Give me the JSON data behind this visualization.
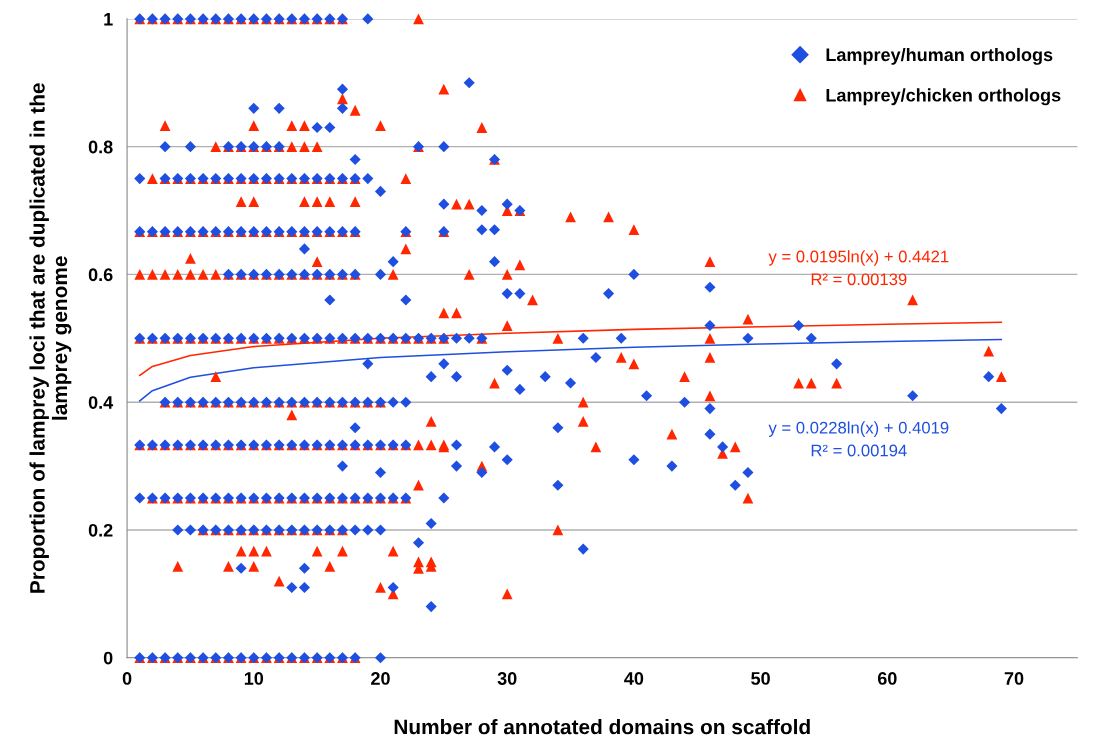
{
  "chart_data": {
    "type": "scatter",
    "xlabel": "Number of annotated domains on scaffold",
    "ylabel": "Proportion of lamprey loci that are duplicated in the\nlamprey genome",
    "xlim": [
      0,
      75
    ],
    "xticks": [
      0,
      10,
      20,
      30,
      40,
      50,
      60,
      70
    ],
    "ylim": [
      0,
      1
    ],
    "yticks": [
      0,
      0.2,
      0.4,
      0.6,
      0.8,
      1
    ],
    "grid": "y",
    "legend": "top right",
    "annotations": [
      "y = 0.0195ln(x) + 0.4421\nR² = 0.00139",
      "y = 0.0228ln(x) + 0.4019\nR² = 0.00194"
    ],
    "series": [
      {
        "name": "Lamprey/chicken orthologs",
        "marker": "triangle",
        "color": "#ff2600",
        "x": [
          1,
          2,
          3,
          4,
          5,
          6,
          7,
          8,
          9,
          10,
          11,
          12,
          13,
          14,
          15,
          16,
          17,
          23,
          1,
          2,
          3,
          4,
          5,
          6,
          7,
          8,
          9,
          10,
          11,
          12,
          13,
          14,
          15,
          16,
          17,
          18,
          3,
          10,
          13,
          14,
          20,
          7,
          8,
          9,
          10,
          11,
          12,
          13,
          14,
          15,
          23,
          2,
          3,
          4,
          5,
          6,
          7,
          8,
          9,
          10,
          11,
          12,
          13,
          14,
          15,
          16,
          17,
          18,
          22,
          9,
          10,
          14,
          15,
          16,
          18,
          1,
          2,
          3,
          4,
          5,
          6,
          7,
          8,
          9,
          10,
          11,
          12,
          13,
          14,
          15,
          16,
          17,
          18,
          22,
          25,
          1,
          2,
          3,
          4,
          5,
          6,
          7,
          8,
          9,
          10,
          11,
          12,
          13,
          14,
          15,
          16,
          17,
          18,
          21,
          1,
          2,
          3,
          4,
          5,
          6,
          7,
          8,
          9,
          10,
          11,
          12,
          13,
          14,
          15,
          16,
          17,
          18,
          19,
          20,
          21,
          22,
          23,
          24,
          25,
          3,
          4,
          5,
          6,
          7,
          8,
          9,
          10,
          11,
          12,
          13,
          14,
          15,
          16,
          17,
          18,
          19,
          20,
          1,
          2,
          3,
          4,
          5,
          6,
          7,
          8,
          9,
          10,
          11,
          12,
          13,
          14,
          15,
          16,
          17,
          18,
          19,
          20,
          21,
          22,
          23,
          24,
          25,
          2,
          3,
          4,
          5,
          6,
          7,
          8,
          9,
          10,
          11,
          12,
          13,
          14,
          15,
          16,
          17,
          18,
          19,
          20,
          21,
          22,
          6,
          7,
          8,
          9,
          10,
          11,
          12,
          13,
          14,
          15,
          16,
          17,
          9,
          10,
          11,
          15,
          17,
          21,
          4,
          8,
          10,
          16,
          24,
          25,
          28,
          17,
          18,
          26,
          27,
          30,
          31,
          29,
          35,
          38,
          40,
          30,
          27,
          31,
          32,
          34,
          36,
          36,
          37,
          34,
          30,
          39,
          40,
          43,
          44,
          46,
          46,
          46,
          46,
          47,
          48,
          49,
          49,
          53,
          54,
          56,
          62,
          68,
          69,
          21,
          20,
          23,
          23,
          24,
          25,
          26,
          25,
          28,
          29,
          28,
          30,
          22,
          23,
          24,
          12,
          5,
          7,
          13,
          15
        ],
        "values": [
          1,
          1,
          1,
          1,
          1,
          1,
          1,
          1,
          1,
          1,
          1,
          1,
          1,
          1,
          1,
          1,
          1,
          1,
          0,
          0,
          0,
          0,
          0,
          0,
          0,
          0,
          0,
          0,
          0,
          0,
          0,
          0,
          0,
          0,
          0,
          0,
          0.833,
          0.833,
          0.833,
          0.833,
          0.833,
          0.8,
          0.8,
          0.8,
          0.8,
          0.8,
          0.8,
          0.8,
          0.8,
          0.8,
          0.8,
          0.75,
          0.75,
          0.75,
          0.75,
          0.75,
          0.75,
          0.75,
          0.75,
          0.75,
          0.75,
          0.75,
          0.75,
          0.75,
          0.75,
          0.75,
          0.75,
          0.75,
          0.75,
          0.714,
          0.714,
          0.714,
          0.714,
          0.714,
          0.714,
          0.667,
          0.667,
          0.667,
          0.667,
          0.667,
          0.667,
          0.667,
          0.667,
          0.667,
          0.667,
          0.667,
          0.667,
          0.667,
          0.667,
          0.667,
          0.667,
          0.667,
          0.667,
          0.667,
          0.667,
          0.6,
          0.6,
          0.6,
          0.6,
          0.6,
          0.6,
          0.6,
          0.6,
          0.6,
          0.6,
          0.6,
          0.6,
          0.6,
          0.6,
          0.6,
          0.6,
          0.6,
          0.6,
          0.6,
          0.5,
          0.5,
          0.5,
          0.5,
          0.5,
          0.5,
          0.5,
          0.5,
          0.5,
          0.5,
          0.5,
          0.5,
          0.5,
          0.5,
          0.5,
          0.5,
          0.5,
          0.5,
          0.5,
          0.5,
          0.5,
          0.5,
          0.5,
          0.5,
          0.5,
          0.4,
          0.4,
          0.4,
          0.4,
          0.4,
          0.4,
          0.4,
          0.4,
          0.4,
          0.4,
          0.4,
          0.4,
          0.4,
          0.4,
          0.4,
          0.4,
          0.4,
          0.4,
          0.333,
          0.333,
          0.333,
          0.333,
          0.333,
          0.333,
          0.333,
          0.333,
          0.333,
          0.333,
          0.333,
          0.333,
          0.333,
          0.333,
          0.333,
          0.333,
          0.333,
          0.333,
          0.333,
          0.333,
          0.333,
          0.333,
          0.333,
          0.333,
          0.333,
          0.25,
          0.25,
          0.25,
          0.25,
          0.25,
          0.25,
          0.25,
          0.25,
          0.25,
          0.25,
          0.25,
          0.25,
          0.25,
          0.25,
          0.25,
          0.25,
          0.25,
          0.25,
          0.25,
          0.25,
          0.25,
          0.2,
          0.2,
          0.2,
          0.2,
          0.2,
          0.2,
          0.2,
          0.2,
          0.2,
          0.2,
          0.2,
          0.2,
          0.167,
          0.167,
          0.167,
          0.167,
          0.167,
          0.167,
          0.143,
          0.143,
          0.143,
          0.143,
          0.143,
          0.89,
          0.83,
          0.875,
          0.857,
          0.71,
          0.71,
          0.7,
          0.7,
          0.78,
          0.69,
          0.69,
          0.67,
          0.6,
          0.6,
          0.615,
          0.56,
          0.5,
          0.4,
          0.37,
          0.33,
          0.2,
          0.1,
          0.47,
          0.46,
          0.35,
          0.44,
          0.62,
          0.5,
          0.47,
          0.41,
          0.32,
          0.33,
          0.53,
          0.25,
          0.43,
          0.43,
          0.43,
          0.56,
          0.48,
          0.44,
          0.1,
          0.11,
          0.15,
          0.14,
          0.15,
          0.54,
          0.54,
          0.33,
          0.3,
          0.43,
          0.5,
          0.52,
          0.64,
          0.27,
          0.37,
          0.12,
          0.625,
          0.44,
          0.38,
          0.62
        ]
      },
      {
        "name": "Lamprey/human orthologs",
        "marker": "diamond",
        "color": "#1f4fe0",
        "x": [
          1,
          2,
          3,
          4,
          5,
          6,
          7,
          8,
          9,
          10,
          11,
          12,
          13,
          14,
          15,
          16,
          17,
          19,
          1,
          2,
          3,
          4,
          5,
          6,
          7,
          8,
          9,
          10,
          11,
          12,
          13,
          14,
          15,
          16,
          17,
          18,
          20,
          1,
          3,
          4,
          5,
          6,
          7,
          8,
          9,
          10,
          11,
          12,
          13,
          14,
          15,
          16,
          17,
          18,
          19,
          3,
          5,
          8,
          9,
          10,
          11,
          12,
          23,
          25,
          1,
          2,
          3,
          4,
          5,
          6,
          7,
          8,
          9,
          10,
          11,
          12,
          13,
          14,
          15,
          16,
          17,
          18,
          22,
          25,
          8,
          9,
          10,
          11,
          12,
          13,
          14,
          15,
          16,
          17,
          18,
          20,
          1,
          2,
          3,
          4,
          5,
          6,
          7,
          8,
          9,
          10,
          11,
          12,
          13,
          14,
          15,
          16,
          17,
          18,
          19,
          20,
          21,
          22,
          23,
          24,
          25,
          26,
          27,
          28,
          3,
          4,
          5,
          6,
          7,
          8,
          9,
          10,
          11,
          12,
          13,
          14,
          15,
          16,
          17,
          18,
          19,
          20,
          21,
          22,
          1,
          2,
          3,
          4,
          5,
          6,
          7,
          8,
          9,
          10,
          11,
          12,
          13,
          14,
          15,
          16,
          17,
          18,
          19,
          20,
          21,
          22,
          26,
          1,
          2,
          3,
          4,
          5,
          6,
          7,
          8,
          9,
          10,
          11,
          12,
          13,
          14,
          15,
          16,
          17,
          18,
          19,
          20,
          21,
          22,
          4,
          5,
          6,
          7,
          8,
          9,
          10,
          11,
          12,
          13,
          14,
          15,
          16,
          17,
          18,
          19,
          20,
          27,
          25,
          29,
          30,
          31,
          28,
          29,
          28,
          29,
          30,
          31,
          33,
          36,
          37,
          38,
          39,
          40,
          40,
          41,
          43,
          44,
          46,
          46,
          46,
          46,
          47,
          48,
          49,
          49,
          53,
          54,
          56,
          62,
          68,
          69,
          34,
          34,
          36,
          35,
          24,
          21,
          23,
          24,
          25,
          26,
          30,
          31,
          30,
          28,
          29,
          24,
          25,
          26,
          13,
          14,
          14,
          9,
          17,
          17,
          16,
          15,
          10,
          12,
          18,
          20,
          14,
          16,
          22,
          21,
          17,
          18,
          19,
          20
        ],
        "values": [
          1,
          1,
          1,
          1,
          1,
          1,
          1,
          1,
          1,
          1,
          1,
          1,
          1,
          1,
          1,
          1,
          1,
          1,
          0,
          0,
          0,
          0,
          0,
          0,
          0,
          0,
          0,
          0,
          0,
          0,
          0,
          0,
          0,
          0,
          0,
          0,
          0,
          0.75,
          0.75,
          0.75,
          0.75,
          0.75,
          0.75,
          0.75,
          0.75,
          0.75,
          0.75,
          0.75,
          0.75,
          0.75,
          0.75,
          0.75,
          0.75,
          0.75,
          0.75,
          0.8,
          0.8,
          0.8,
          0.8,
          0.8,
          0.8,
          0.8,
          0.8,
          0.8,
          0.667,
          0.667,
          0.667,
          0.667,
          0.667,
          0.667,
          0.667,
          0.667,
          0.667,
          0.667,
          0.667,
          0.667,
          0.667,
          0.667,
          0.667,
          0.667,
          0.667,
          0.667,
          0.667,
          0.667,
          0.6,
          0.6,
          0.6,
          0.6,
          0.6,
          0.6,
          0.6,
          0.6,
          0.6,
          0.6,
          0.6,
          0.6,
          0.5,
          0.5,
          0.5,
          0.5,
          0.5,
          0.5,
          0.5,
          0.5,
          0.5,
          0.5,
          0.5,
          0.5,
          0.5,
          0.5,
          0.5,
          0.5,
          0.5,
          0.5,
          0.5,
          0.5,
          0.5,
          0.5,
          0.5,
          0.5,
          0.5,
          0.5,
          0.5,
          0.5,
          0.4,
          0.4,
          0.4,
          0.4,
          0.4,
          0.4,
          0.4,
          0.4,
          0.4,
          0.4,
          0.4,
          0.4,
          0.4,
          0.4,
          0.4,
          0.4,
          0.4,
          0.4,
          0.4,
          0.4,
          0.333,
          0.333,
          0.333,
          0.333,
          0.333,
          0.333,
          0.333,
          0.333,
          0.333,
          0.333,
          0.333,
          0.333,
          0.333,
          0.333,
          0.333,
          0.333,
          0.333,
          0.333,
          0.333,
          0.333,
          0.333,
          0.333,
          0.333,
          0.25,
          0.25,
          0.25,
          0.25,
          0.25,
          0.25,
          0.25,
          0.25,
          0.25,
          0.25,
          0.25,
          0.25,
          0.25,
          0.25,
          0.25,
          0.25,
          0.25,
          0.25,
          0.25,
          0.25,
          0.25,
          0.25,
          0.2,
          0.2,
          0.2,
          0.2,
          0.2,
          0.2,
          0.2,
          0.2,
          0.2,
          0.2,
          0.2,
          0.2,
          0.2,
          0.2,
          0.2,
          0.2,
          0.2,
          0.9,
          0.71,
          0.78,
          0.71,
          0.7,
          0.67,
          0.67,
          0.7,
          0.62,
          0.57,
          0.57,
          0.44,
          0.5,
          0.47,
          0.57,
          0.5,
          0.6,
          0.31,
          0.41,
          0.3,
          0.4,
          0.58,
          0.52,
          0.39,
          0.35,
          0.33,
          0.27,
          0.5,
          0.29,
          0.52,
          0.5,
          0.46,
          0.41,
          0.44,
          0.39,
          0.36,
          0.27,
          0.17,
          0.43,
          0.08,
          0.11,
          0.18,
          0.21,
          0.25,
          0.3,
          0.45,
          0.42,
          0.31,
          0.29,
          0.33,
          0.44,
          0.46,
          0.44,
          0.11,
          0.11,
          0.14,
          0.14,
          0.86,
          0.89,
          0.83,
          0.83,
          0.86,
          0.86,
          0.78,
          0.73,
          0.64,
          0.56,
          0.56,
          0.62,
          0.3,
          0.36,
          0.46,
          0.29
        ]
      },
      {
        "type": "line",
        "color": "#ff2600",
        "x": [
          1,
          2,
          5,
          10,
          20,
          30,
          40,
          50,
          60,
          69
        ],
        "values": [
          0.442,
          0.456,
          0.473,
          0.487,
          0.5,
          0.508,
          0.514,
          0.518,
          0.522,
          0.525
        ]
      },
      {
        "type": "line",
        "color": "#1f4fe0",
        "x": [
          1,
          2,
          5,
          10,
          20,
          30,
          40,
          50,
          60,
          69
        ],
        "values": [
          0.402,
          0.418,
          0.439,
          0.454,
          0.47,
          0.479,
          0.486,
          0.491,
          0.495,
          0.498
        ]
      }
    ]
  }
}
